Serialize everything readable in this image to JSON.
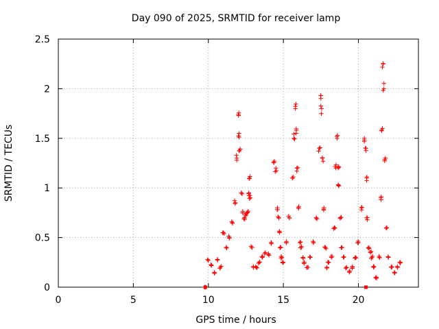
{
  "chart_data": {
    "type": "scatter",
    "title": "Day 090 of 2025, SRMTID for receiver lamp",
    "xlabel": "GPS time / hours",
    "ylabel": "SRMTID / TECUs",
    "xlim": [
      0,
      24
    ],
    "ylim": [
      0,
      2.5
    ],
    "xticks": [
      0,
      5,
      10,
      15,
      20
    ],
    "xtick_labels": [
      "0",
      "5",
      "10",
      "15",
      "20"
    ],
    "yticks": [
      0,
      0.5,
      1,
      1.5,
      2,
      2.5
    ],
    "ytick_labels": [
      "0",
      "0.5",
      "1",
      "1.5",
      "2",
      "2.5"
    ],
    "grid": true,
    "marker": "plus",
    "series": [
      {
        "name": "SRMTID",
        "color": "#ff0000",
        "x": [
          9.8,
          10.0,
          10.2,
          10.4,
          10.6,
          10.8,
          11.0,
          11.2,
          11.4,
          11.6,
          11.8,
          11.9,
          12.0,
          12.05,
          12.1,
          12.2,
          12.3,
          12.4,
          12.5,
          12.6,
          12.7,
          12.75,
          12.8,
          12.9,
          13.0,
          13.2,
          13.4,
          13.6,
          13.8,
          14.0,
          14.2,
          14.4,
          14.5,
          14.6,
          14.7,
          14.75,
          14.8,
          14.9,
          15.0,
          15.2,
          15.4,
          15.6,
          15.7,
          15.8,
          15.85,
          15.9,
          16.0,
          16.1,
          16.2,
          16.3,
          16.4,
          16.6,
          16.8,
          17.0,
          17.2,
          17.4,
          17.5,
          17.55,
          17.6,
          17.7,
          17.8,
          17.9,
          18.0,
          18.2,
          18.4,
          18.5,
          18.6,
          18.65,
          18.7,
          18.8,
          18.9,
          19.0,
          19.2,
          19.4,
          19.6,
          19.8,
          20.0,
          20.2,
          20.4,
          20.5,
          20.55,
          20.6,
          20.7,
          20.8,
          20.9,
          21.0,
          21.2,
          21.4,
          21.5,
          21.6,
          21.65,
          21.7,
          21.8,
          21.9,
          22.0,
          22.2,
          22.4,
          22.6,
          22.8
        ],
        "y": [
          0.0,
          0.27,
          0.22,
          0.15,
          0.28,
          0.2,
          0.55,
          0.4,
          0.5,
          0.65,
          0.85,
          1.3,
          1.74,
          1.55,
          1.38,
          0.95,
          0.75,
          0.7,
          0.72,
          0.75,
          0.95,
          1.1,
          0.9,
          0.4,
          0.2,
          0.2,
          0.25,
          0.3,
          0.35,
          0.33,
          0.45,
          1.27,
          1.2,
          0.8,
          0.7,
          0.55,
          0.4,
          0.3,
          0.25,
          0.45,
          0.7,
          1.1,
          1.5,
          1.8,
          1.55,
          1.2,
          0.8,
          0.45,
          0.4,
          0.3,
          0.25,
          0.2,
          0.3,
          0.45,
          0.7,
          1.4,
          1.93,
          1.8,
          1.3,
          0.8,
          0.4,
          0.2,
          0.25,
          0.3,
          0.6,
          1.2,
          1.53,
          1.2,
          1.02,
          0.7,
          0.4,
          0.3,
          0.2,
          0.15,
          0.2,
          0.3,
          0.45,
          0.8,
          1.5,
          1.4,
          1.1,
          0.7,
          0.4,
          0.35,
          0.3,
          0.2,
          0.1,
          0.3,
          0.9,
          1.6,
          2.25,
          2.0,
          1.3,
          0.6,
          0.3,
          0.2,
          0.15,
          0.2,
          0.25
        ]
      }
    ],
    "extra_markers": [
      {
        "x": 9.8,
        "y": 0.0,
        "shape": "square"
      },
      {
        "x": 20.5,
        "y": 0.0,
        "shape": "square"
      }
    ]
  }
}
